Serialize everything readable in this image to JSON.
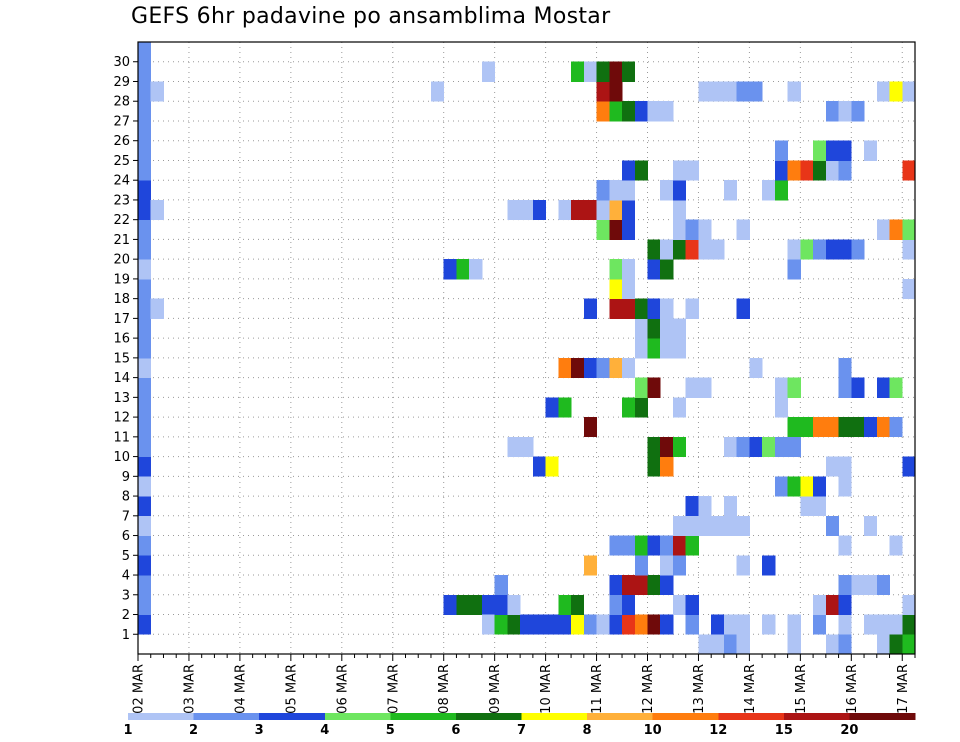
{
  "chart_data": {
    "type": "heatmap",
    "title": "GEFS 6hr padavine po ansamblima Mostar",
    "x_tick_labels": [
      "02 MAR",
      "03 MAR",
      "04 MAR",
      "05 MAR",
      "06 MAR",
      "07 MAR",
      "08 MAR",
      "09 MAR",
      "10 MAR",
      "11 MAR",
      "12 MAR",
      "13 MAR",
      "14 MAR",
      "15 MAR",
      "16 MAR",
      "17 MAR"
    ],
    "x_start": "02 MAR 00Z",
    "time_step_hours": 6,
    "n_steps": 61,
    "y_tick_labels": [
      "1",
      "2",
      "3",
      "4",
      "5",
      "6",
      "7",
      "8",
      "9",
      "10",
      "11",
      "12",
      "13",
      "14",
      "15",
      "16",
      "17",
      "18",
      "19",
      "20",
      "21",
      "22",
      "23",
      "24",
      "25",
      "26",
      "27",
      "28",
      "29",
      "30"
    ],
    "grid": true,
    "legend": {
      "position": "bottom",
      "labels": [
        "1",
        "2",
        "3",
        "4",
        "5",
        "6",
        "7",
        "8",
        "10",
        "12",
        "15",
        "20"
      ],
      "colors": [
        "#afc4f5",
        "#6a92ee",
        "#1f46db",
        "#6ee660",
        "#1fba1f",
        "#107010",
        "#ffff00",
        "#ffb03a",
        "#ff7d0e",
        "#e83518",
        "#ac1414",
        "#6f0a0a"
      ]
    },
    "cells": [
      [
        1,
        0,
        3
      ],
      [
        2,
        0,
        2
      ],
      [
        3,
        0,
        2
      ],
      [
        4,
        0,
        3
      ],
      [
        5,
        0,
        2
      ],
      [
        6,
        0,
        1
      ],
      [
        7,
        0,
        3
      ],
      [
        8,
        0,
        1
      ],
      [
        9,
        0,
        3
      ],
      [
        10,
        0,
        2
      ],
      [
        11,
        0,
        2
      ],
      [
        12,
        0,
        2
      ],
      [
        13,
        0,
        2
      ],
      [
        14,
        0,
        1
      ],
      [
        15,
        0,
        2
      ],
      [
        16,
        0,
        2
      ],
      [
        17,
        0,
        2
      ],
      [
        18,
        0,
        2
      ],
      [
        19,
        0,
        1
      ],
      [
        20,
        0,
        2
      ],
      [
        21,
        0,
        2
      ],
      [
        22,
        0,
        3
      ],
      [
        23,
        0,
        3
      ],
      [
        24,
        0,
        2
      ],
      [
        25,
        0,
        2
      ],
      [
        26,
        0,
        2
      ],
      [
        27,
        0,
        2
      ],
      [
        28,
        0,
        2
      ],
      [
        29,
        0,
        2
      ],
      [
        30,
        0,
        2
      ],
      [
        28,
        1,
        1
      ],
      [
        22,
        1,
        1
      ],
      [
        17,
        1,
        1
      ],
      [
        28,
        23,
        1
      ],
      [
        19,
        24,
        3
      ],
      [
        19,
        25,
        5
      ],
      [
        19,
        26,
        1
      ],
      [
        2,
        24,
        3
      ],
      [
        2,
        25,
        6
      ],
      [
        2,
        26,
        6
      ],
      [
        2,
        27,
        3
      ],
      [
        29,
        27,
        1
      ],
      [
        1,
        27,
        1
      ],
      [
        1,
        28,
        5
      ],
      [
        1,
        29,
        6
      ],
      [
        1,
        30,
        3
      ],
      [
        1,
        31,
        3
      ],
      [
        1,
        32,
        3
      ],
      [
        1,
        33,
        3
      ],
      [
        1,
        34,
        7
      ],
      [
        1,
        35,
        2
      ],
      [
        1,
        36,
        1
      ],
      [
        1,
        37,
        3
      ],
      [
        1,
        38,
        10
      ],
      [
        1,
        39,
        9
      ],
      [
        1,
        40,
        12
      ],
      [
        1,
        41,
        3
      ],
      [
        1,
        43,
        2
      ],
      [
        1,
        45,
        3
      ],
      [
        1,
        46,
        1
      ],
      [
        1,
        47,
        1
      ],
      [
        1,
        49,
        1
      ],
      [
        1,
        51,
        1
      ],
      [
        1,
        53,
        2
      ],
      [
        1,
        55,
        1
      ],
      [
        1,
        57,
        1
      ],
      [
        1,
        58,
        1
      ],
      [
        1,
        59,
        1
      ],
      [
        1,
        60,
        6
      ],
      [
        2,
        28,
        3
      ],
      [
        2,
        29,
        1
      ],
      [
        2,
        33,
        5
      ],
      [
        2,
        34,
        6
      ],
      [
        2,
        37,
        2
      ],
      [
        2,
        38,
        3
      ],
      [
        2,
        42,
        1
      ],
      [
        2,
        43,
        3
      ],
      [
        2,
        53,
        1
      ],
      [
        2,
        54,
        11
      ],
      [
        2,
        55,
        3
      ],
      [
        2,
        60,
        1
      ],
      [
        3,
        28,
        2
      ],
      [
        3,
        37,
        3
      ],
      [
        3,
        38,
        11
      ],
      [
        3,
        39,
        11
      ],
      [
        3,
        40,
        6
      ],
      [
        3,
        41,
        3
      ],
      [
        3,
        55,
        2
      ],
      [
        3,
        56,
        1
      ],
      [
        3,
        57,
        1
      ],
      [
        3,
        58,
        2
      ],
      [
        4,
        35,
        8
      ],
      [
        4,
        39,
        2
      ],
      [
        4,
        41,
        1
      ],
      [
        4,
        42,
        2
      ],
      [
        4,
        47,
        1
      ],
      [
        4,
        49,
        3
      ],
      [
        5,
        37,
        2
      ],
      [
        5,
        38,
        2
      ],
      [
        5,
        39,
        5
      ],
      [
        5,
        40,
        3
      ],
      [
        5,
        41,
        2
      ],
      [
        5,
        42,
        11
      ],
      [
        5,
        43,
        5
      ],
      [
        5,
        55,
        1
      ],
      [
        5,
        59,
        1
      ],
      [
        6,
        42,
        1
      ],
      [
        6,
        43,
        1
      ],
      [
        6,
        44,
        1
      ],
      [
        6,
        45,
        1
      ],
      [
        6,
        46,
        1
      ],
      [
        6,
        47,
        1
      ],
      [
        6,
        54,
        2
      ],
      [
        6,
        57,
        1
      ],
      [
        7,
        43,
        3
      ],
      [
        7,
        44,
        1
      ],
      [
        7,
        46,
        1
      ],
      [
        7,
        52,
        1
      ],
      [
        7,
        53,
        1
      ],
      [
        8,
        50,
        2
      ],
      [
        8,
        51,
        5
      ],
      [
        8,
        52,
        7
      ],
      [
        8,
        53,
        3
      ],
      [
        8,
        55,
        1
      ],
      [
        9,
        31,
        3
      ],
      [
        9,
        32,
        7
      ],
      [
        9,
        40,
        6
      ],
      [
        9,
        41,
        9
      ],
      [
        9,
        54,
        1
      ],
      [
        9,
        55,
        1
      ],
      [
        9,
        60,
        3
      ],
      [
        10,
        29,
        1
      ],
      [
        10,
        30,
        1
      ],
      [
        10,
        40,
        6
      ],
      [
        10,
        41,
        12
      ],
      [
        10,
        42,
        5
      ],
      [
        10,
        46,
        1
      ],
      [
        10,
        47,
        2
      ],
      [
        10,
        48,
        3
      ],
      [
        10,
        49,
        4
      ],
      [
        10,
        50,
        2
      ],
      [
        10,
        51,
        2
      ],
      [
        11,
        35,
        12
      ],
      [
        11,
        51,
        5
      ],
      [
        11,
        52,
        5
      ],
      [
        11,
        53,
        9
      ],
      [
        11,
        54,
        9
      ],
      [
        11,
        55,
        6
      ],
      [
        11,
        56,
        6
      ],
      [
        11,
        57,
        3
      ],
      [
        11,
        58,
        9
      ],
      [
        11,
        59,
        2
      ],
      [
        12,
        32,
        3
      ],
      [
        12,
        33,
        5
      ],
      [
        12,
        38,
        5
      ],
      [
        12,
        39,
        6
      ],
      [
        12,
        42,
        1
      ],
      [
        12,
        50,
        1
      ],
      [
        13,
        39,
        4
      ],
      [
        13,
        40,
        12
      ],
      [
        13,
        43,
        1
      ],
      [
        13,
        44,
        1
      ],
      [
        13,
        50,
        1
      ],
      [
        13,
        51,
        4
      ],
      [
        13,
        55,
        2
      ],
      [
        13,
        56,
        3
      ],
      [
        13,
        58,
        3
      ],
      [
        13,
        59,
        4
      ],
      [
        14,
        33,
        9
      ],
      [
        14,
        34,
        12
      ],
      [
        14,
        35,
        3
      ],
      [
        14,
        36,
        2
      ],
      [
        14,
        37,
        8
      ],
      [
        14,
        38,
        1
      ],
      [
        14,
        48,
        1
      ],
      [
        14,
        55,
        2
      ],
      [
        15,
        39,
        1
      ],
      [
        15,
        40,
        5
      ],
      [
        15,
        41,
        1
      ],
      [
        15,
        42,
        1
      ],
      [
        16,
        39,
        1
      ],
      [
        16,
        40,
        6
      ],
      [
        16,
        41,
        1
      ],
      [
        16,
        42,
        1
      ],
      [
        17,
        35,
        3
      ],
      [
        17,
        37,
        11
      ],
      [
        17,
        38,
        11
      ],
      [
        17,
        39,
        6
      ],
      [
        17,
        40,
        3
      ],
      [
        17,
        41,
        1
      ],
      [
        17,
        43,
        1
      ],
      [
        17,
        47,
        3
      ],
      [
        18,
        37,
        7
      ],
      [
        18,
        38,
        1
      ],
      [
        18,
        60,
        1
      ],
      [
        19,
        37,
        4
      ],
      [
        19,
        38,
        1
      ],
      [
        19,
        40,
        3
      ],
      [
        19,
        41,
        6
      ],
      [
        19,
        51,
        2
      ],
      [
        20,
        40,
        6
      ],
      [
        20,
        41,
        1
      ],
      [
        20,
        42,
        6
      ],
      [
        20,
        43,
        10
      ],
      [
        20,
        44,
        1
      ],
      [
        20,
        45,
        1
      ],
      [
        20,
        51,
        1
      ],
      [
        20,
        52,
        4
      ],
      [
        20,
        53,
        2
      ],
      [
        20,
        54,
        3
      ],
      [
        20,
        55,
        3
      ],
      [
        20,
        56,
        2
      ],
      [
        20,
        60,
        1
      ],
      [
        21,
        36,
        4
      ],
      [
        21,
        37,
        12
      ],
      [
        21,
        38,
        3
      ],
      [
        21,
        42,
        1
      ],
      [
        21,
        43,
        2
      ],
      [
        21,
        44,
        1
      ],
      [
        21,
        47,
        1
      ],
      [
        21,
        58,
        1
      ],
      [
        21,
        59,
        9
      ],
      [
        21,
        60,
        4
      ],
      [
        22,
        29,
        1
      ],
      [
        22,
        30,
        1
      ],
      [
        22,
        31,
        3
      ],
      [
        22,
        33,
        1
      ],
      [
        22,
        34,
        11
      ],
      [
        22,
        35,
        11
      ],
      [
        22,
        36,
        1
      ],
      [
        22,
        37,
        8
      ],
      [
        22,
        38,
        3
      ],
      [
        22,
        42,
        1
      ],
      [
        23,
        36,
        2
      ],
      [
        23,
        37,
        1
      ],
      [
        23,
        38,
        1
      ],
      [
        23,
        41,
        1
      ],
      [
        23,
        42,
        3
      ],
      [
        23,
        46,
        1
      ],
      [
        23,
        49,
        1
      ],
      [
        23,
        50,
        5
      ],
      [
        24,
        38,
        3
      ],
      [
        24,
        39,
        6
      ],
      [
        24,
        42,
        1
      ],
      [
        24,
        43,
        1
      ],
      [
        24,
        50,
        3
      ],
      [
        24,
        51,
        9
      ],
      [
        24,
        52,
        10
      ],
      [
        24,
        53,
        6
      ],
      [
        24,
        54,
        1
      ],
      [
        24,
        55,
        2
      ],
      [
        24,
        60,
        10
      ],
      [
        25,
        50,
        2
      ],
      [
        25,
        53,
        4
      ],
      [
        25,
        54,
        3
      ],
      [
        25,
        55,
        3
      ],
      [
        25,
        57,
        1
      ],
      [
        27,
        36,
        9
      ],
      [
        27,
        37,
        5
      ],
      [
        27,
        38,
        6
      ],
      [
        27,
        39,
        3
      ],
      [
        27,
        40,
        1
      ],
      [
        27,
        41,
        1
      ],
      [
        27,
        54,
        2
      ],
      [
        27,
        55,
        1
      ],
      [
        27,
        56,
        2
      ],
      [
        28,
        36,
        11
      ],
      [
        28,
        37,
        12
      ],
      [
        28,
        44,
        1
      ],
      [
        28,
        45,
        1
      ],
      [
        28,
        46,
        1
      ],
      [
        28,
        47,
        2
      ],
      [
        28,
        48,
        2
      ],
      [
        28,
        51,
        1
      ],
      [
        28,
        58,
        1
      ],
      [
        28,
        59,
        7
      ],
      [
        28,
        60,
        1
      ],
      [
        29,
        34,
        5
      ],
      [
        29,
        35,
        1
      ],
      [
        29,
        36,
        6
      ],
      [
        29,
        37,
        12
      ],
      [
        29,
        38,
        6
      ],
      [
        0,
        44,
        1
      ],
      [
        0,
        45,
        1
      ],
      [
        0,
        46,
        2
      ],
      [
        0,
        47,
        1
      ],
      [
        0,
        51,
        1
      ],
      [
        0,
        54,
        1
      ],
      [
        0,
        55,
        2
      ],
      [
        0,
        58,
        1
      ],
      [
        0,
        59,
        6
      ],
      [
        0,
        60,
        5
      ]
    ]
  }
}
